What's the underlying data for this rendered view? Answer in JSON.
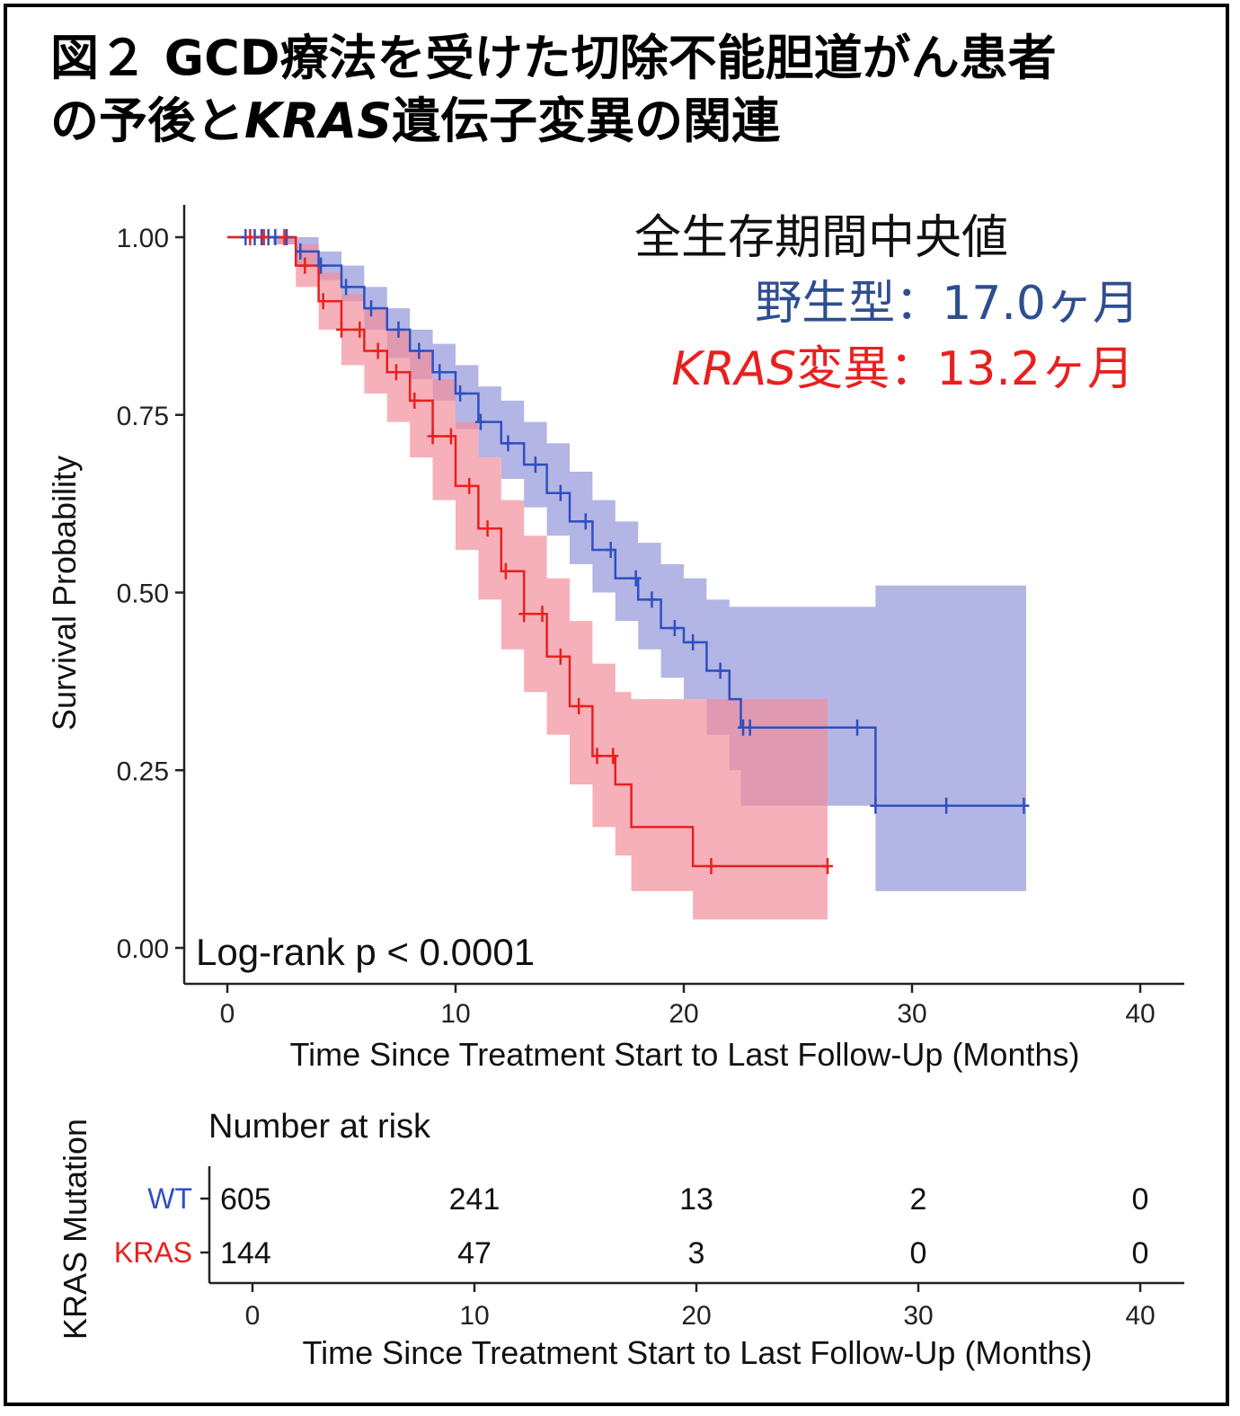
{
  "figure": {
    "title_line1": "図２ GCD療法を受けた切除不能胆道がん患者",
    "title_line2_prefix": "の予後と",
    "title_line2_gene": "KRAS",
    "title_line2_suffix": "遺伝子変異の関連"
  },
  "annotations": {
    "median_title": "全生存期間中央値",
    "median_wt_label": "野生型",
    "median_wt_value": "：17.0ヶ月",
    "median_kras_gene": "KRAS",
    "median_kras_label": "変異",
    "median_kras_value": "：13.2ヶ月",
    "pvalue": "Log-rank p < 0.0001"
  },
  "colors": {
    "wt_line": "#2f4fc2",
    "wt_band": "#9a9cdb",
    "kras_line": "#e8201e",
    "kras_band": "#f28e9b",
    "median_wt_text": "#2e4e8f"
  },
  "chart_data": [
    {
      "type": "line",
      "subtype": "kaplan-meier",
      "xlabel": "Time Since Treatment Start to Last Follow-Up (Months)",
      "ylabel": "Survival Probability",
      "xlim": [
        0,
        40
      ],
      "ylim": [
        0,
        1
      ],
      "x_ticks": [
        0,
        10,
        20,
        30,
        40
      ],
      "y_ticks": [
        "0.00",
        "0.25",
        "0.50",
        "0.75",
        "1.00"
      ],
      "grid": false,
      "series": [
        {
          "name": "WT",
          "steps": [
            [
              0,
              1.0
            ],
            [
              2,
              1.0
            ],
            [
              3,
              0.98
            ],
            [
              4,
              0.96
            ],
            [
              5,
              0.93
            ],
            [
              6,
              0.9
            ],
            [
              7,
              0.87
            ],
            [
              8,
              0.84
            ],
            [
              9,
              0.81
            ],
            [
              10,
              0.78
            ],
            [
              11,
              0.74
            ],
            [
              12,
              0.71
            ],
            [
              13,
              0.68
            ],
            [
              14,
              0.64
            ],
            [
              15,
              0.6
            ],
            [
              16,
              0.56
            ],
            [
              17,
              0.52
            ],
            [
              18,
              0.49
            ],
            [
              19,
              0.45
            ],
            [
              20,
              0.43
            ],
            [
              21,
              0.39
            ],
            [
              22,
              0.35
            ],
            [
              22.5,
              0.31
            ],
            [
              28.4,
              0.2
            ],
            [
              35,
              0.2
            ]
          ],
          "band": [
            [
              0,
              1.0,
              1.0
            ],
            [
              2,
              0.99,
              1.0
            ],
            [
              3,
              0.96,
              1.0
            ],
            [
              4,
              0.94,
              0.98
            ],
            [
              5,
              0.91,
              0.96
            ],
            [
              6,
              0.87,
              0.93
            ],
            [
              7,
              0.83,
              0.9
            ],
            [
              8,
              0.8,
              0.87
            ],
            [
              9,
              0.77,
              0.85
            ],
            [
              10,
              0.73,
              0.82
            ],
            [
              11,
              0.69,
              0.79
            ],
            [
              12,
              0.66,
              0.77
            ],
            [
              13,
              0.62,
              0.74
            ],
            [
              14,
              0.58,
              0.71
            ],
            [
              15,
              0.54,
              0.67
            ],
            [
              16,
              0.5,
              0.63
            ],
            [
              17,
              0.46,
              0.6
            ],
            [
              18,
              0.42,
              0.57
            ],
            [
              19,
              0.38,
              0.54
            ],
            [
              20,
              0.35,
              0.52
            ],
            [
              21,
              0.3,
              0.49
            ],
            [
              22,
              0.25,
              0.48
            ],
            [
              22.5,
              0.2,
              0.48
            ],
            [
              28.4,
              0.08,
              0.51
            ],
            [
              35,
              0.08,
              0.51
            ]
          ],
          "censor_x": [
            0.8,
            1.2,
            1.5,
            1.8,
            2.1,
            2.6,
            3.2,
            4.1,
            5.2,
            6.3,
            7.5,
            8.4,
            9.3,
            10.2,
            11.1,
            12.3,
            13.5,
            14.6,
            15.7,
            16.8,
            17.9,
            18.6,
            19.6,
            20.4,
            21.6,
            22.6,
            22.9,
            27.6,
            28.4,
            31.5,
            34.9
          ]
        },
        {
          "name": "KRAS",
          "steps": [
            [
              0,
              1.0
            ],
            [
              2.2,
              1.0
            ],
            [
              3,
              0.96
            ],
            [
              4,
              0.91
            ],
            [
              5,
              0.87
            ],
            [
              6,
              0.84
            ],
            [
              7,
              0.81
            ],
            [
              8,
              0.77
            ],
            [
              9,
              0.72
            ],
            [
              10,
              0.65
            ],
            [
              11,
              0.59
            ],
            [
              12,
              0.53
            ],
            [
              13,
              0.47
            ],
            [
              14,
              0.41
            ],
            [
              15,
              0.34
            ],
            [
              16,
              0.27
            ],
            [
              17,
              0.23
            ],
            [
              17.7,
              0.17
            ],
            [
              20.4,
              0.115
            ],
            [
              26.3,
              0.115
            ]
          ],
          "band": [
            [
              0,
              1.0,
              1.0
            ],
            [
              2.2,
              0.99,
              1.0
            ],
            [
              3,
              0.93,
              0.99
            ],
            [
              4,
              0.87,
              0.95
            ],
            [
              5,
              0.82,
              0.92
            ],
            [
              6,
              0.78,
              0.9
            ],
            [
              7,
              0.74,
              0.87
            ],
            [
              8,
              0.69,
              0.84
            ],
            [
              9,
              0.63,
              0.8
            ],
            [
              10,
              0.56,
              0.74
            ],
            [
              11,
              0.49,
              0.69
            ],
            [
              12,
              0.42,
              0.63
            ],
            [
              13,
              0.36,
              0.58
            ],
            [
              14,
              0.3,
              0.52
            ],
            [
              15,
              0.23,
              0.46
            ],
            [
              16,
              0.17,
              0.4
            ],
            [
              17,
              0.13,
              0.36
            ],
            [
              17.7,
              0.08,
              0.35
            ],
            [
              20.4,
              0.04,
              0.35
            ],
            [
              26.3,
              0.04,
              0.35
            ]
          ],
          "censor_x": [
            1.0,
            1.6,
            2.5,
            3.4,
            4.2,
            5.0,
            5.8,
            6.6,
            7.4,
            8.2,
            9.0,
            9.8,
            10.6,
            11.4,
            12.2,
            13.0,
            13.8,
            14.6,
            15.4,
            16.2,
            16.9,
            21.2,
            26.3
          ]
        }
      ]
    },
    {
      "type": "table",
      "title": "Number at risk",
      "ylabel": "KRAS Mutation",
      "xlabel": "Time Since Treatment Start to Last Follow-Up (Months)",
      "x_ticks": [
        0,
        10,
        20,
        30,
        40
      ],
      "rows": [
        {
          "label": "WT",
          "values": [
            605,
            241,
            13,
            2,
            0
          ]
        },
        {
          "label": "KRAS",
          "values": [
            144,
            47,
            3,
            0,
            0
          ]
        }
      ]
    }
  ]
}
